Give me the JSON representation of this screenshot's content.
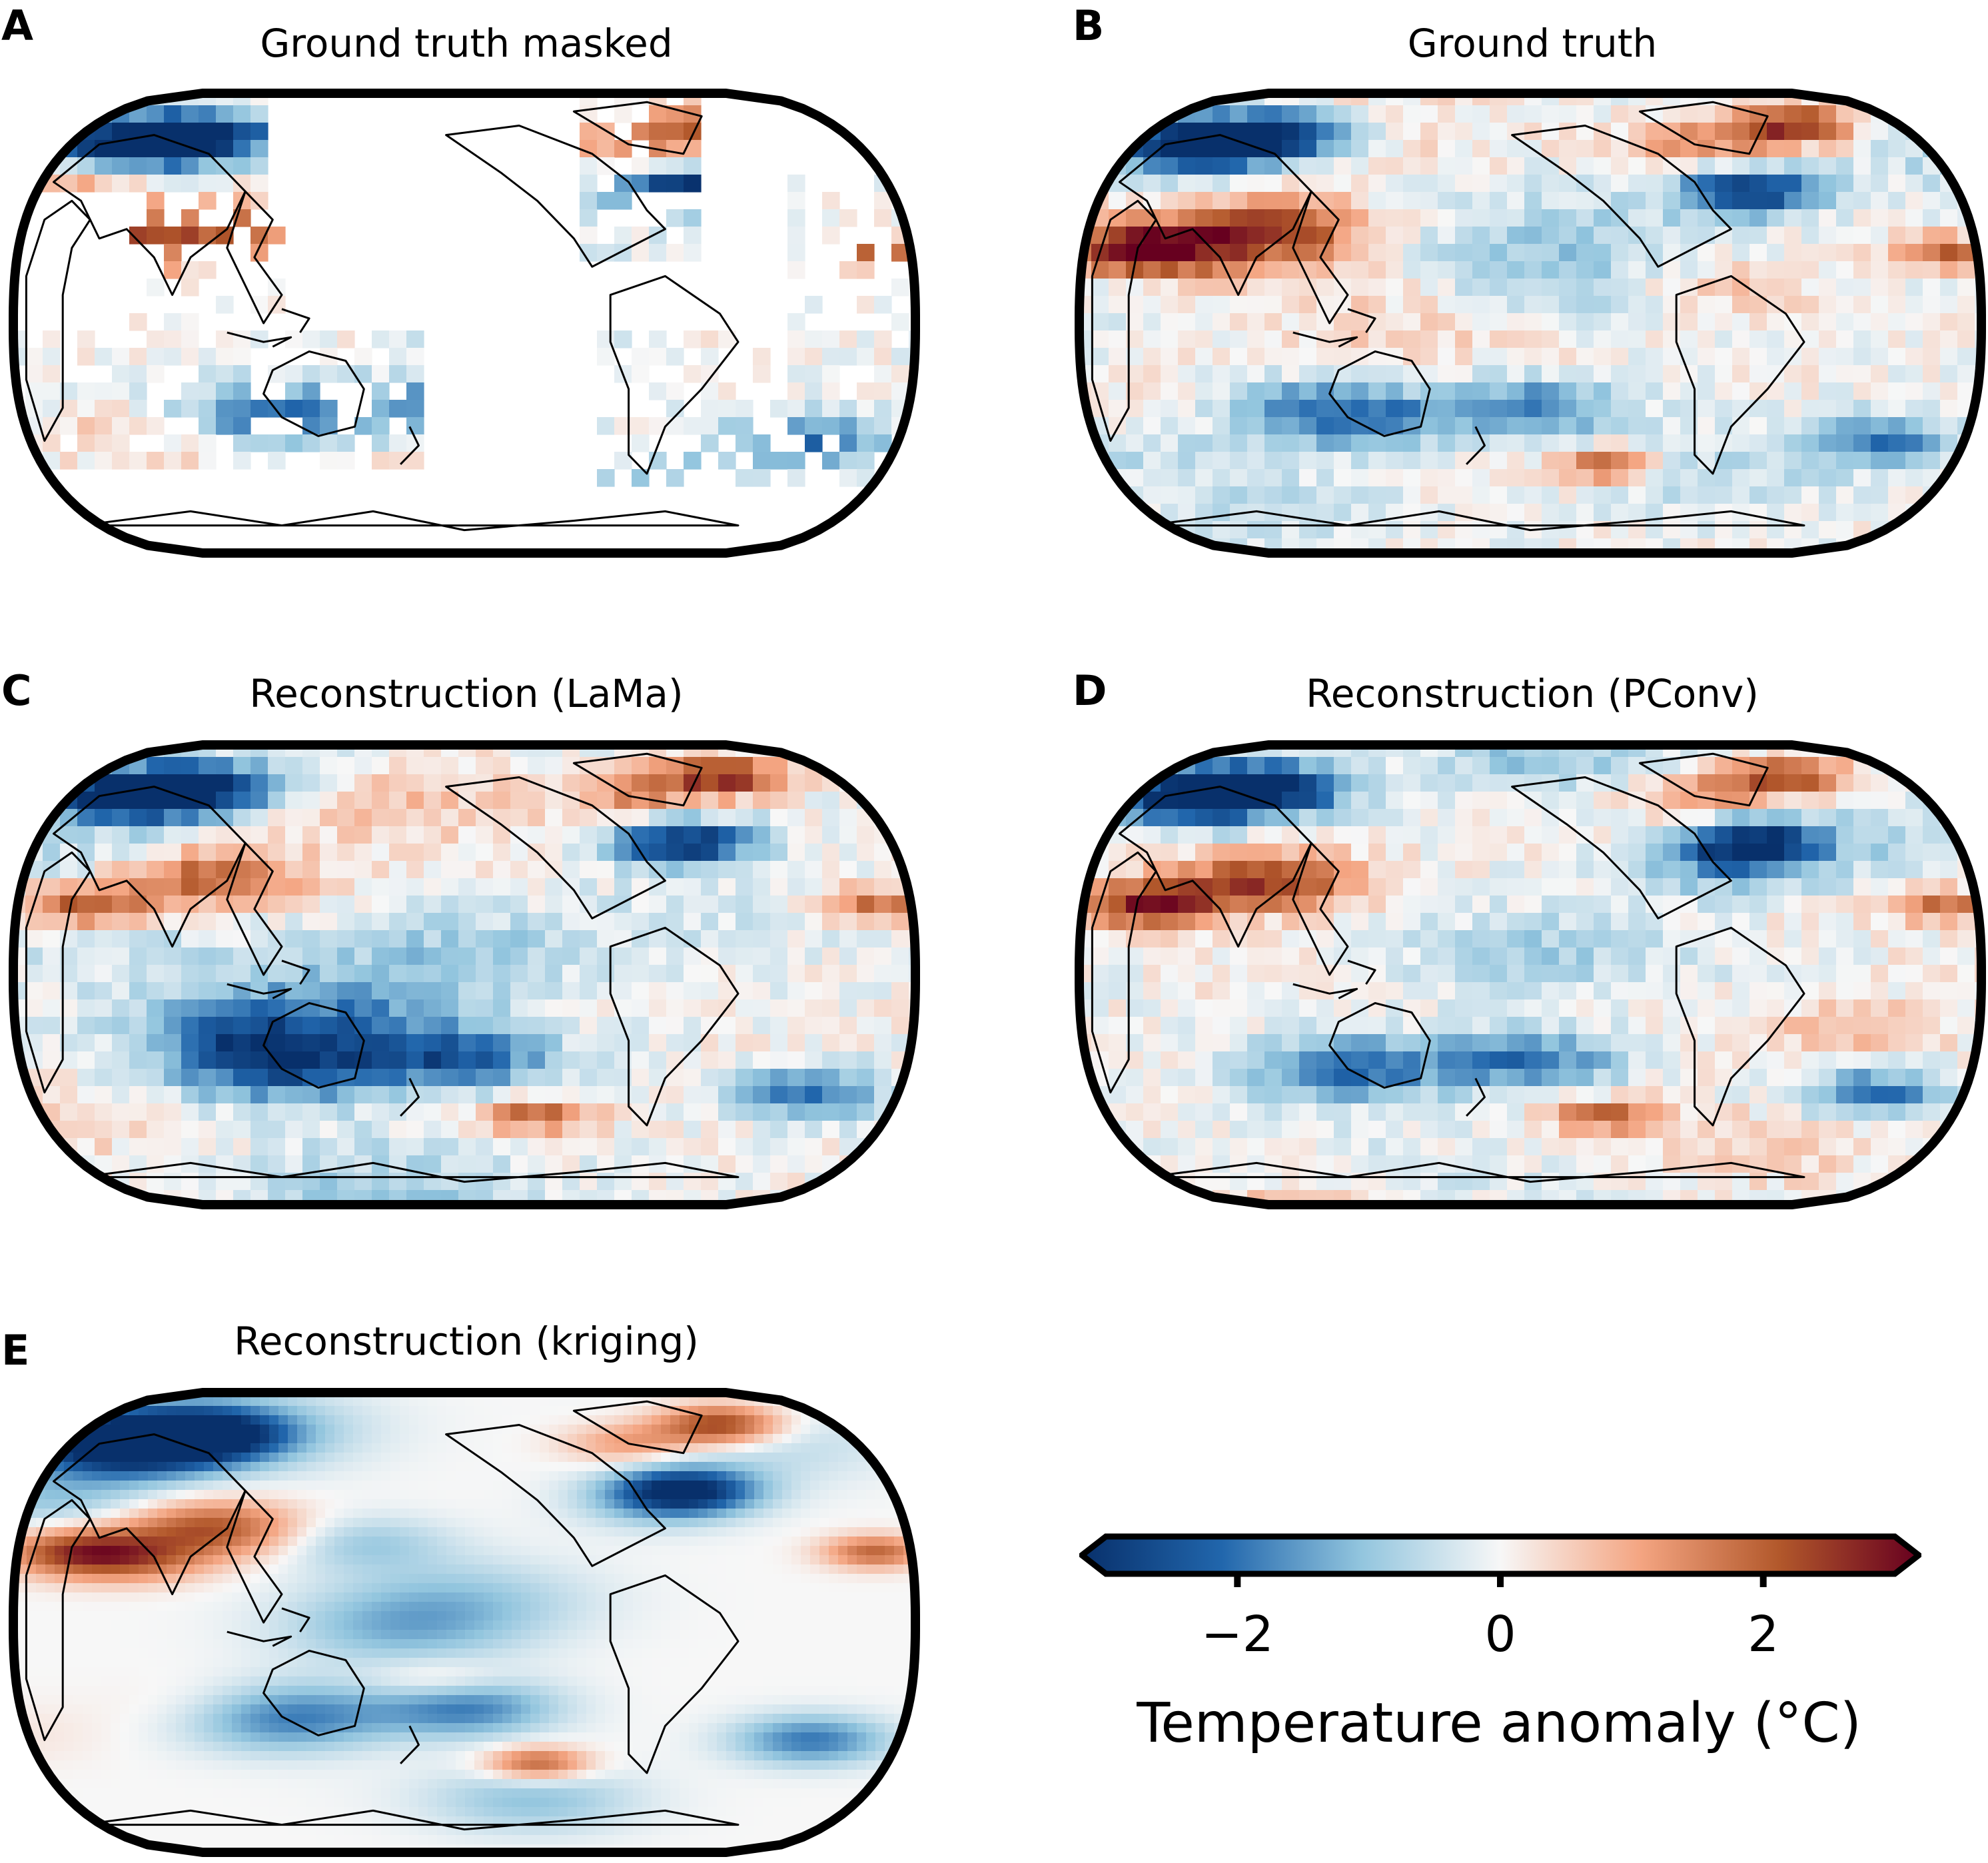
{
  "panels": [
    {
      "letter": "A",
      "title": "Ground truth masked",
      "variant": "masked",
      "seed": 11
    },
    {
      "letter": "B",
      "title": "Ground truth",
      "variant": "full",
      "seed": 23
    },
    {
      "letter": "C",
      "title": "Reconstruction (LaMa)",
      "variant": "full",
      "seed": 37
    },
    {
      "letter": "D",
      "title": "Reconstruction (PConv)",
      "variant": "full",
      "seed": 41
    },
    {
      "letter": "E",
      "title": "Reconstruction (kriging)",
      "variant": "smooth",
      "seed": 53
    }
  ],
  "colorbar": {
    "label": "Temperature anomaly (°C)",
    "ticks": [
      "−2",
      "0",
      "2"
    ],
    "tick_values": [
      -2,
      0,
      2
    ],
    "range": [
      -3,
      3
    ],
    "colors": [
      "#08306b",
      "#2166ac",
      "#92c5de",
      "#f7f7f7",
      "#f4a582",
      "#b2582b",
      "#67001f"
    ]
  }
}
